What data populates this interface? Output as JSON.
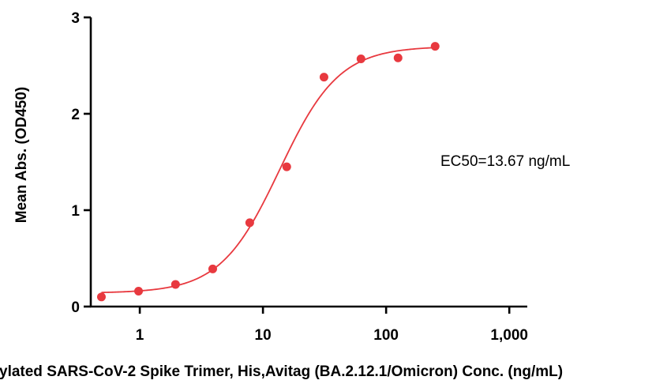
{
  "chart_data": {
    "type": "scatter",
    "x_scale": "log",
    "xlabel": "ylated SARS-CoV-2 Spike Trimer, His,Avitag (BA.2.12.1/Omicron) Conc. (ng/mL)",
    "ylabel": "Mean Abs. (OD450)",
    "xlim": [
      0.4,
      1400
    ],
    "ylim": [
      0,
      3
    ],
    "x_ticks": [
      {
        "value": 1,
        "label": "1"
      },
      {
        "value": 10,
        "label": "10"
      },
      {
        "value": 100,
        "label": "100"
      },
      {
        "value": 1000,
        "label": "1,000"
      }
    ],
    "y_ticks": [
      {
        "value": 0,
        "label": "0"
      },
      {
        "value": 1,
        "label": "1"
      },
      {
        "value": 2,
        "label": "2"
      },
      {
        "value": 3,
        "label": "3"
      }
    ],
    "grid": false,
    "color": "#e8393f",
    "series": [
      {
        "points": [
          {
            "x": 0.488,
            "y": 0.1
          },
          {
            "x": 0.977,
            "y": 0.16
          },
          {
            "x": 1.95,
            "y": 0.23
          },
          {
            "x": 3.91,
            "y": 0.39
          },
          {
            "x": 7.81,
            "y": 0.87
          },
          {
            "x": 15.6,
            "y": 1.45
          },
          {
            "x": 31.3,
            "y": 2.38
          },
          {
            "x": 62.5,
            "y": 2.57
          },
          {
            "x": 125,
            "y": 2.58
          },
          {
            "x": 250,
            "y": 2.7
          }
        ],
        "fit": {
          "model": "4PL",
          "bottom": 0.14,
          "top": 2.7,
          "ec50": 13.67,
          "hill": 1.8
        }
      }
    ],
    "annotation": "EC50=13.67 ng/mL"
  }
}
